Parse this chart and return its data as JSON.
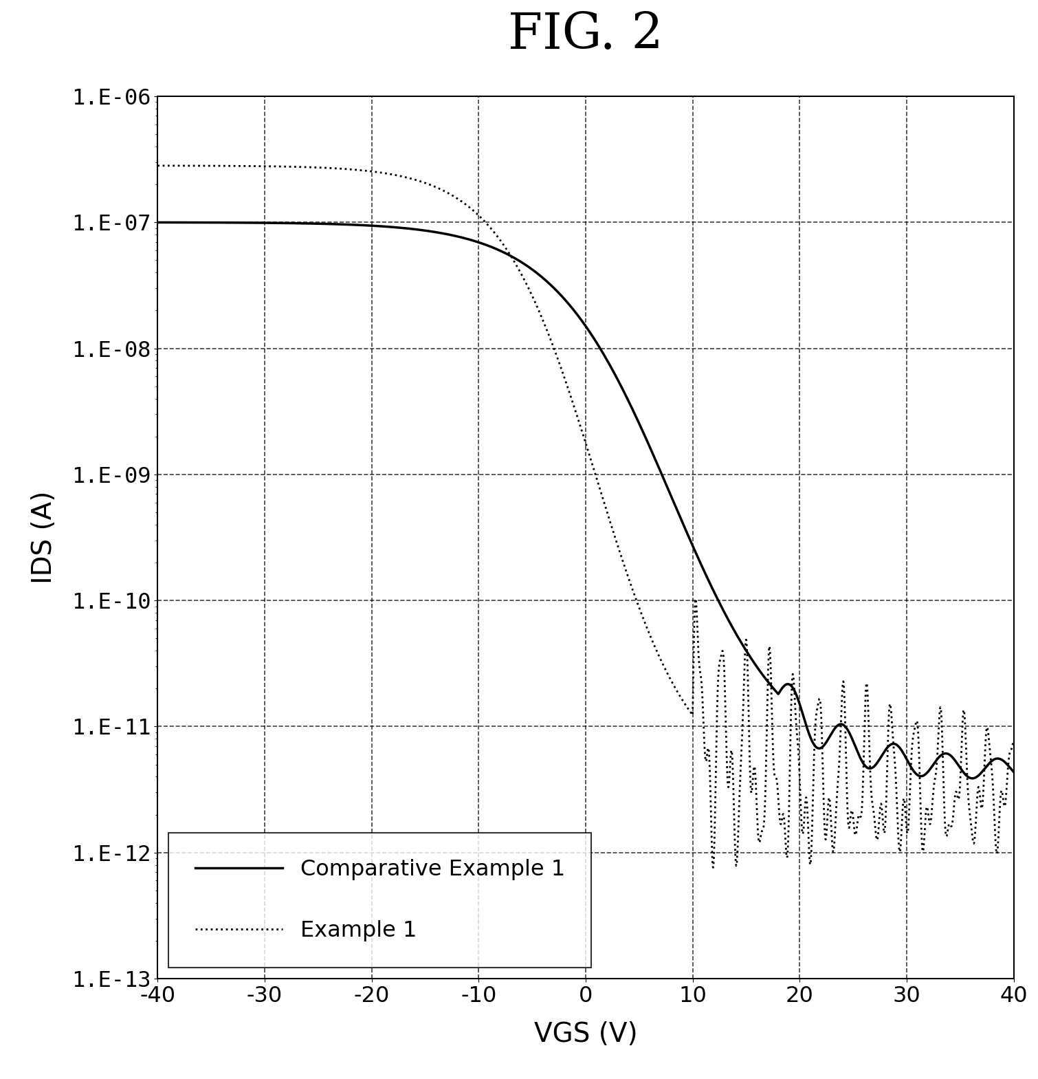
{
  "title": "FIG. 2",
  "xlabel_display": "VGS (V)",
  "ylabel_display": "IDS (A)",
  "xlim": [
    -40,
    40
  ],
  "ylim_log": [
    -13,
    -6
  ],
  "xticks": [
    -40,
    -30,
    -20,
    -10,
    0,
    10,
    20,
    30,
    40
  ],
  "ytick_labels": [
    "1.E-13",
    "1.E-12",
    "1.E-11",
    "1.E-10",
    "1.E-09",
    "1.E-08",
    "1.E-07",
    "1.E-06"
  ],
  "legend_label_solid": "Comparative Example 1",
  "legend_label_dotted": "Example 1",
  "background_color": "#ffffff",
  "line_color": "#000000",
  "title_fontsize": 52,
  "axis_label_fontsize": 28,
  "tick_fontsize": 23,
  "legend_fontsize": 23,
  "solid_linewidth": 2.5,
  "dotted_linewidth": 2.0
}
